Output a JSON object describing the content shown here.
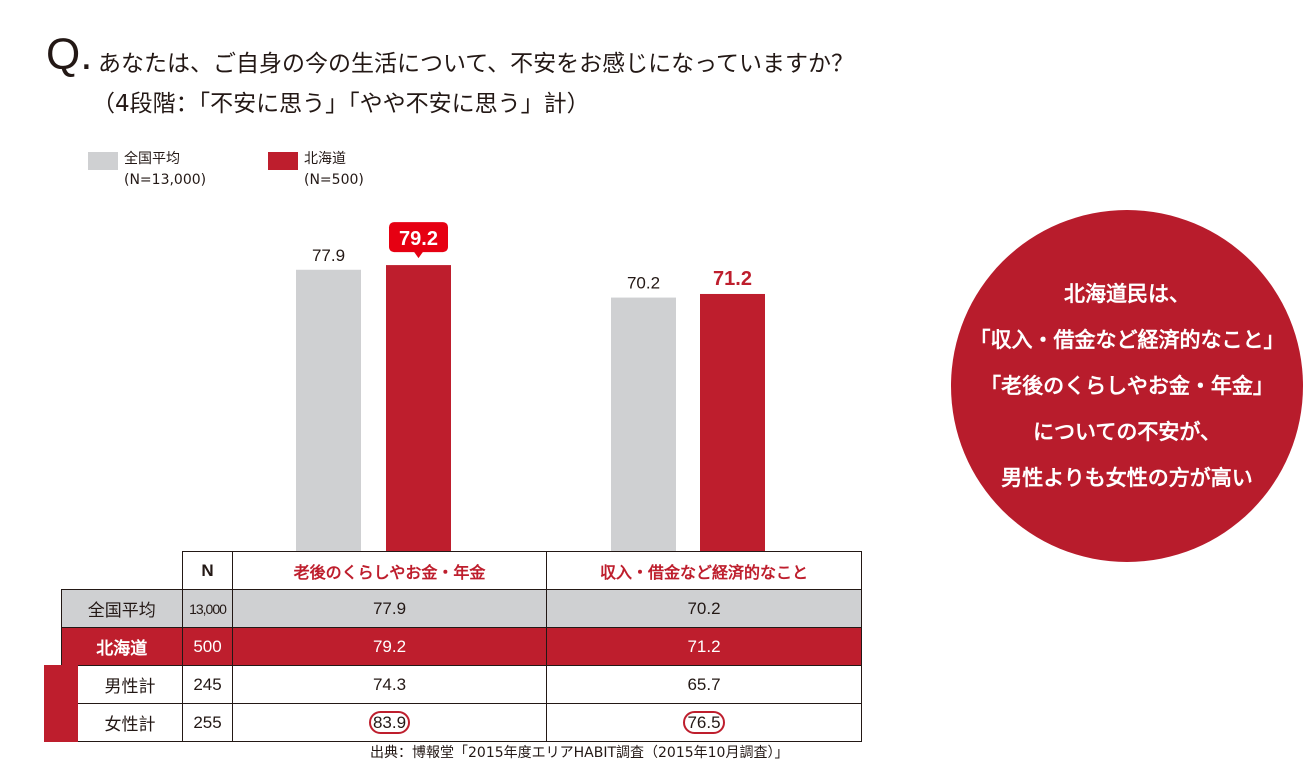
{
  "question": {
    "q": "Q.",
    "line1": "あなたは、ご自身の今の生活について、不安をお感じになっていますか？",
    "line2": "（4段階：「不安に思う」「やや不安に思う」計）"
  },
  "chart_data": {
    "type": "bar",
    "categories": [
      "老後のくらしやお金・年金",
      "収入・借金など経済的なこと"
    ],
    "series": [
      {
        "name": "全国平均",
        "n": "(N=13,000)",
        "color": "#cfd0d2",
        "values": [
          77.9,
          70.2
        ]
      },
      {
        "name": "北海道",
        "n": "(N=500)",
        "color": "#be1e2d",
        "values": [
          79.2,
          71.2
        ]
      }
    ],
    "ylim": [
      0,
      100
    ],
    "highlight": "79.2"
  },
  "table": {
    "n_header": "N",
    "headers": [
      "老後のくらしやお金・年金",
      "収入・借金など経済的なこと"
    ],
    "rows": [
      {
        "label": "全国平均",
        "n": "13,000",
        "v": [
          "77.9",
          "70.2"
        ]
      },
      {
        "label": "北海道",
        "n": "500",
        "v": [
          "79.2",
          "71.2"
        ]
      },
      {
        "label": "男性計",
        "n": "245",
        "v": [
          "74.3",
          "65.7"
        ]
      },
      {
        "label": "女性計",
        "n": "255",
        "v": [
          "83.9",
          "76.5"
        ]
      }
    ]
  },
  "source": "出典：博報堂「2015年度エリアHABIT調査（2015年10月調査）」",
  "callout": [
    "北海道民は、",
    "「収入・借金など経済的なこと」",
    "「老後のくらしやお金・年金」",
    "についての不安が、",
    "男性よりも女性の方が高い"
  ]
}
